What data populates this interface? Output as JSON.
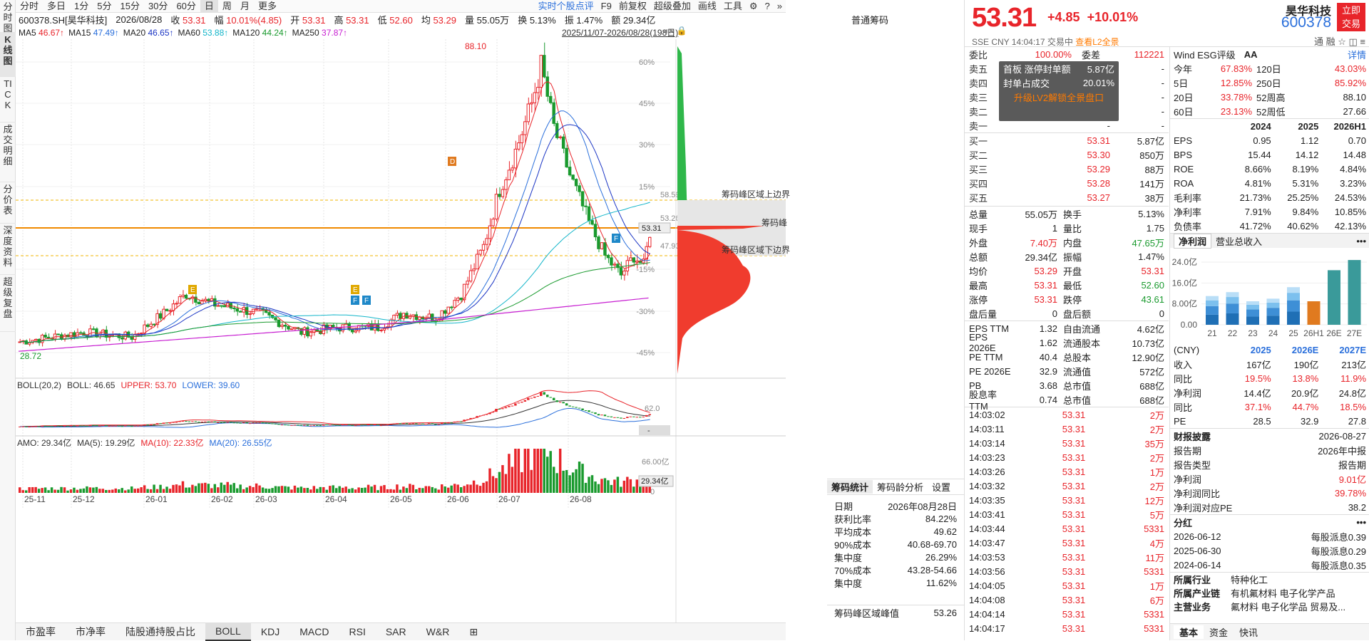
{
  "rail": [
    "分时图",
    "K线图",
    "TICK",
    "成交明细",
    "分价表",
    "深度资料",
    "超级复盘"
  ],
  "periods": [
    "分时",
    "多日",
    "1分",
    "5分",
    "15分",
    "30分",
    "60分",
    "日",
    "周",
    "月",
    "更多"
  ],
  "active_period": "日",
  "toolbar_right": [
    "实时个股点评",
    "F9",
    "前复权",
    "超级叠加",
    "画线",
    "工具"
  ],
  "quote": {
    "code": "600378.SH[昊华科技]",
    "date": "2026/08/28",
    "close_label": "收",
    "close": "53.31",
    "chg_label": "幅",
    "chg": "10.01%(4.85)",
    "open_label": "开",
    "open": "53.31",
    "high_label": "高",
    "high": "53.31",
    "low_label": "低",
    "low": "52.60",
    "avg_label": "均",
    "avg": "53.29",
    "vol_label": "量",
    "vol": "55.05万",
    "turn_label": "换",
    "turn": "5.13%",
    "amp_label": "振",
    "amp": "1.47%",
    "amt_label": "额",
    "amt": "29.34亿"
  },
  "ma": [
    {
      "label": "MA5",
      "value": "46.67↑",
      "color": "#e8242a"
    },
    {
      "label": "MA15",
      "value": "47.49↑",
      "color": "#2a6fdb"
    },
    {
      "label": "MA20",
      "value": "46.65↑",
      "color": "#1b35c4"
    },
    {
      "label": "MA60",
      "value": "53.88↑",
      "color": "#12b5c9"
    },
    {
      "label": "MA120",
      "value": "44.24↑",
      "color": "#1a9a2e"
    },
    {
      "label": "MA250",
      "value": "37.87↑",
      "color": "#c71ed1"
    }
  ],
  "range_label": "2025/11/07-2026/08/28(198日)",
  "chip_header": "普通筹码",
  "chart_data": {
    "type": "candlestick",
    "x_ticks": [
      "25-11",
      "25-12",
      "26-01",
      "26-02",
      "26-03",
      "26-04",
      "26-05",
      "26-06",
      "26-07",
      "26-08"
    ],
    "y_pct_ticks": [
      "60%",
      "45%",
      "30%",
      "15%",
      "-15%",
      "-30%",
      "-45%"
    ],
    "y_price_marks": [
      "58.59",
      "53.26",
      "47.93"
    ],
    "current_price_tag": "53.31",
    "high_label": "88.10",
    "low_label": "28.72",
    "chip_lines": [
      "筹码峰区域上边界",
      "筹码峰",
      "筹码峰区域下边界"
    ],
    "boll": {
      "title": "BOLL(20,2)",
      "boll_label": "BOLL: 46.65",
      "upper_label": "UPPER: 53.70",
      "lower_label": "LOWER: 39.60",
      "tick": "62.0",
      "tag": "-"
    },
    "amo": {
      "title": "AMO: 29.34亿",
      "ma5": "MA(5): 19.29亿",
      "ma10": "MA(10): 22.33亿",
      "ma20": "MA(20): 26.55亿",
      "tick": "66.00亿",
      "zero": "0",
      "tag": "29.34亿"
    },
    "signal_badges": [
      "E",
      "E",
      "F",
      "F",
      "D",
      "F"
    ]
  },
  "indicator_tabs": [
    "市盈率",
    "市净率",
    "陆股通持股占比",
    "BOLL",
    "KDJ",
    "MACD",
    "RSI",
    "SAR",
    "W&R"
  ],
  "active_indicator": "BOLL",
  "chip_stats": {
    "tabs": [
      "筹码统计",
      "筹码龄分析",
      "设置"
    ],
    "rows": [
      {
        "k": "日期",
        "v": "2026年08月28日"
      },
      {
        "k": "获利比率",
        "v": "84.22%"
      },
      {
        "k": "平均成本",
        "v": "49.62"
      },
      {
        "k": "90%成本",
        "v": "40.68-69.70"
      },
      {
        "k": "集中度",
        "v": "26.29%"
      },
      {
        "k": "70%成本",
        "v": "43.28-54.66"
      },
      {
        "k": "集中度",
        "v": "11.62%"
      }
    ],
    "peak_label": "筹码峰区域峰值",
    "peak_value": "53.26"
  },
  "header": {
    "price": "53.31",
    "change": "+4.85",
    "pct": "+10.01%",
    "sub": "SSE  CNY  14:04:17  交易中",
    "l2": "查看L2全景",
    "name": "昊华科技",
    "code": "600378",
    "trade": "立即交易",
    "icons": "通  融  ☆  ◫  ≡"
  },
  "orderbook": {
    "ratio_label": "委比",
    "ratio": "100.00%",
    "diff_label": "委差",
    "diff": "112221",
    "asks": [
      [
        "卖五",
        "-",
        "-"
      ],
      [
        "卖四",
        "-",
        "-"
      ],
      [
        "卖三",
        "-",
        "-"
      ],
      [
        "卖二",
        "-",
        "-"
      ],
      [
        "卖一",
        "-",
        "-"
      ]
    ],
    "overlay": [
      [
        "首板 涨停封单额",
        "5.87亿"
      ],
      [
        "封单占成交",
        "20.01%"
      ]
    ],
    "overlay_link": "升级LV2解锁全景盘口",
    "bids": [
      [
        "买一",
        "53.31",
        "5.87亿"
      ],
      [
        "买二",
        "53.30",
        "850万"
      ],
      [
        "买三",
        "53.29",
        "88万"
      ],
      [
        "买四",
        "53.28",
        "141万"
      ],
      [
        "买五",
        "53.27",
        "38万"
      ]
    ]
  },
  "stats": [
    [
      "总量",
      "55.05万",
      "换手",
      "5.13%"
    ],
    [
      "现手",
      "1",
      "量比",
      "1.75"
    ],
    [
      "外盘",
      "7.40万",
      "内盘",
      "47.65万"
    ],
    [
      "总额",
      "29.34亿",
      "振幅",
      "1.47%"
    ],
    [
      "均价",
      "53.29",
      "开盘",
      "53.31"
    ],
    [
      "最高",
      "53.31",
      "最低",
      "52.60"
    ],
    [
      "涨停",
      "53.31",
      "跌停",
      "43.61"
    ],
    [
      "盘后量",
      "0",
      "盘后额",
      "0"
    ],
    [
      "EPS TTM",
      "1.32",
      "自由流通",
      "4.62亿"
    ],
    [
      "EPS 2026E",
      "1.62",
      "流通股本",
      "10.73亿"
    ],
    [
      "PE TTM",
      "40.4",
      "总股本",
      "12.90亿"
    ],
    [
      "PE 2026E",
      "32.9",
      "流通值",
      "572亿"
    ],
    [
      "PB",
      "3.68",
      "总市值",
      "688亿"
    ],
    [
      "股息率TTM",
      "0.74",
      "总市值",
      "688亿"
    ]
  ],
  "ticks": [
    [
      "14:03:02",
      "53.31",
      "2万"
    ],
    [
      "14:03:11",
      "53.31",
      "2万"
    ],
    [
      "14:03:14",
      "53.31",
      "35万"
    ],
    [
      "14:03:23",
      "53.31",
      "2万"
    ],
    [
      "14:03:26",
      "53.31",
      "1万"
    ],
    [
      "14:03:32",
      "53.31",
      "2万"
    ],
    [
      "14:03:35",
      "53.31",
      "12万"
    ],
    [
      "14:03:41",
      "53.31",
      "5万"
    ],
    [
      "14:03:44",
      "53.31",
      "5331"
    ],
    [
      "14:03:47",
      "53.31",
      "4万"
    ],
    [
      "14:03:53",
      "53.31",
      "11万"
    ],
    [
      "14:03:56",
      "53.31",
      "5331"
    ],
    [
      "14:04:05",
      "53.31",
      "1万"
    ],
    [
      "14:04:08",
      "53.31",
      "6万"
    ],
    [
      "14:04:14",
      "53.31",
      "5331"
    ],
    [
      "14:04:17",
      "53.31",
      "5331"
    ]
  ],
  "fin": {
    "wind": "Wind  ESG评级",
    "esg": "AA",
    "detail": "详情",
    "perf": [
      [
        "今年",
        "67.83%",
        "120日",
        "43.03%"
      ],
      [
        "5日",
        "12.85%",
        "250日",
        "85.92%"
      ],
      [
        "20日",
        "33.78%",
        "52周高",
        "88.10"
      ],
      [
        "60日",
        "23.13%",
        "52周低",
        "27.66"
      ]
    ],
    "years": [
      "2024",
      "2025",
      "2026H1"
    ],
    "metrics": [
      [
        "EPS",
        "0.95",
        "1.12",
        "0.70"
      ],
      [
        "BPS",
        "15.44",
        "14.12",
        "14.48"
      ],
      [
        "ROE",
        "8.66%",
        "8.19%",
        "4.84%"
      ],
      [
        "ROA",
        "4.81%",
        "5.31%",
        "3.23%"
      ],
      [
        "毛利率",
        "21.73%",
        "25.25%",
        "24.53%"
      ],
      [
        "净利率",
        "7.91%",
        "9.84%",
        "10.85%"
      ],
      [
        "负债率",
        "41.72%",
        "40.62%",
        "42.13%"
      ]
    ],
    "tabs": [
      "净利润",
      "营业总收入"
    ],
    "bar_y": [
      "24.0亿",
      "16.0亿",
      "8.00亿",
      "0.00"
    ],
    "bar_x": [
      "21",
      "22",
      "23",
      "24",
      "25",
      "26H1",
      "26E",
      "27E"
    ],
    "bar_values": [
      11.0,
      12.5,
      9.0,
      10.0,
      14.4,
      9.0,
      20.9,
      24.8
    ],
    "fc_head": [
      "(CNY)",
      "2025",
      "2026E",
      "2027E"
    ],
    "forecast": [
      [
        "收入",
        "167亿",
        "190亿",
        "213亿"
      ],
      [
        "同比",
        "19.5%",
        "13.8%",
        "11.9%"
      ],
      [
        "净利润",
        "14.4亿",
        "20.9亿",
        "24.8亿"
      ],
      [
        "同比",
        "37.1%",
        "44.7%",
        "18.5%"
      ],
      [
        "PE",
        "28.5",
        "32.9",
        "27.8"
      ]
    ],
    "report_title": "财报披露",
    "report_date": "2026-08-27",
    "report": [
      [
        "报告期",
        "2026年中报"
      ],
      [
        "报告类型",
        "报告期"
      ],
      [
        "净利润",
        "9.01亿"
      ],
      [
        "净利润同比",
        "39.78%"
      ],
      [
        "净利润对应PE",
        "38.2"
      ]
    ],
    "div_title": "分红",
    "divs": [
      [
        "2026-06-12",
        "每股派息0.39"
      ],
      [
        "2025-06-30",
        "每股派息0.29"
      ],
      [
        "2024-06-14",
        "每股派息0.35"
      ]
    ],
    "industry": [
      [
        "所属行业",
        "特种化工"
      ],
      [
        "所属产业链",
        "有机氟材料  电子化学产品"
      ],
      [
        "主营业务",
        "氟材料  电子化学品  贸易及..."
      ]
    ],
    "bottom_tabs": [
      "基本",
      "资金",
      "快讯"
    ]
  }
}
